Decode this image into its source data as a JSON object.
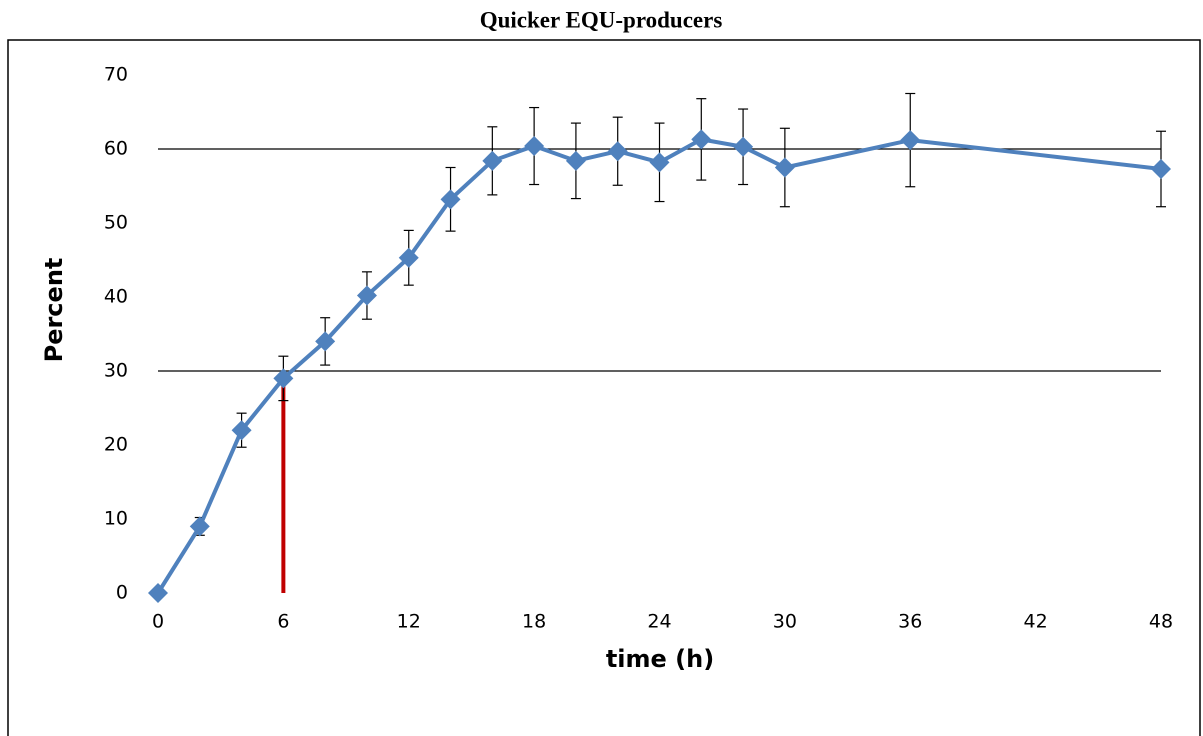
{
  "chart_data": {
    "type": "line",
    "title": "Quicker EQU-producers",
    "x_label": "time (h)",
    "y_label": "Percent",
    "series": [
      {
        "color": "#4f81bd",
        "x": [
          0,
          2,
          4,
          6,
          8,
          10,
          12,
          14,
          16,
          18,
          20,
          22,
          24,
          26,
          28,
          30,
          36,
          48
        ],
        "values": [
          0,
          9,
          22,
          29,
          34,
          40.2,
          45.3,
          53.2,
          58.4,
          60.4,
          58.4,
          59.7,
          58.2,
          61.3,
          60.3,
          57.5,
          61.2,
          57.3
        ],
        "errors": [
          0,
          1.2,
          2.3,
          3,
          3.2,
          3.2,
          3.7,
          4.3,
          4.6,
          5.2,
          5.1,
          4.6,
          5.3,
          5.5,
          5.1,
          5.3,
          6.3,
          5.1
        ]
      }
    ],
    "xlim": [
      0,
      48
    ],
    "xticks": [
      0,
      6,
      12,
      18,
      24,
      30,
      36,
      42,
      48
    ],
    "ylim": [
      0,
      70
    ],
    "yticks": [
      0,
      10,
      20,
      30,
      40,
      50,
      60,
      70
    ],
    "reference_lines": [
      30,
      60
    ],
    "marker_line": {
      "x": 6,
      "y": [
        0,
        30
      ],
      "color": "#c00000"
    }
  }
}
